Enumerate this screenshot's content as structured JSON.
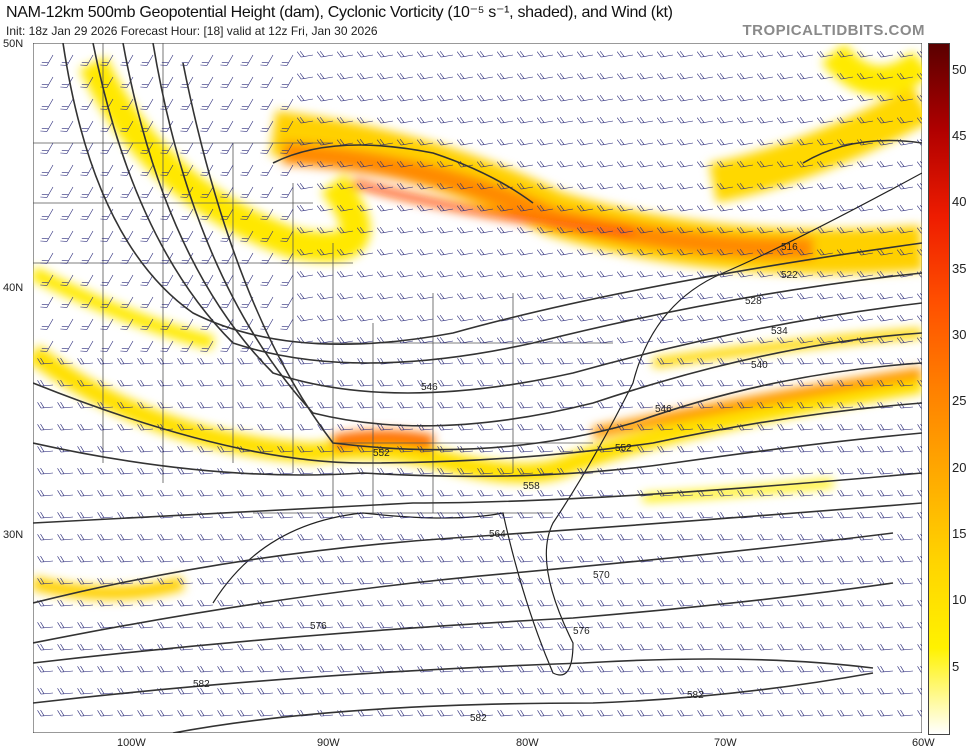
{
  "header": {
    "title": "NAM-12km 500mb Geopotential Height (dam), Cyclonic Vorticity (10⁻⁵ s⁻¹, shaded), and Wind (kt)",
    "subtitle": "Init: 18z Jan 29 2026   Forecast Hour: [18]   valid at 12z Fri, Jan 30 2026",
    "brand": "TROPICALTIDBITS.COM"
  },
  "axes": {
    "lat_labels": [
      "50N",
      "40N",
      "30N"
    ],
    "lon_labels": [
      "100W",
      "90W",
      "80W",
      "70W",
      "60W"
    ]
  },
  "colorbar": {
    "ticks": [
      "50",
      "45",
      "40",
      "35",
      "30",
      "25",
      "20",
      "15",
      "10",
      "5"
    ],
    "min": 0,
    "max": 52,
    "colors": [
      "#ffffff",
      "#fff200",
      "#ffd400",
      "#ffaa00",
      "#ff8000",
      "#ff5000",
      "#ee1c00",
      "#b00000",
      "#5a0000"
    ]
  },
  "contour_labels": [
    "516",
    "522",
    "528",
    "534",
    "540",
    "546",
    "546",
    "552",
    "552",
    "558",
    "564",
    "570",
    "576",
    "576",
    "582",
    "582",
    "582"
  ]
}
